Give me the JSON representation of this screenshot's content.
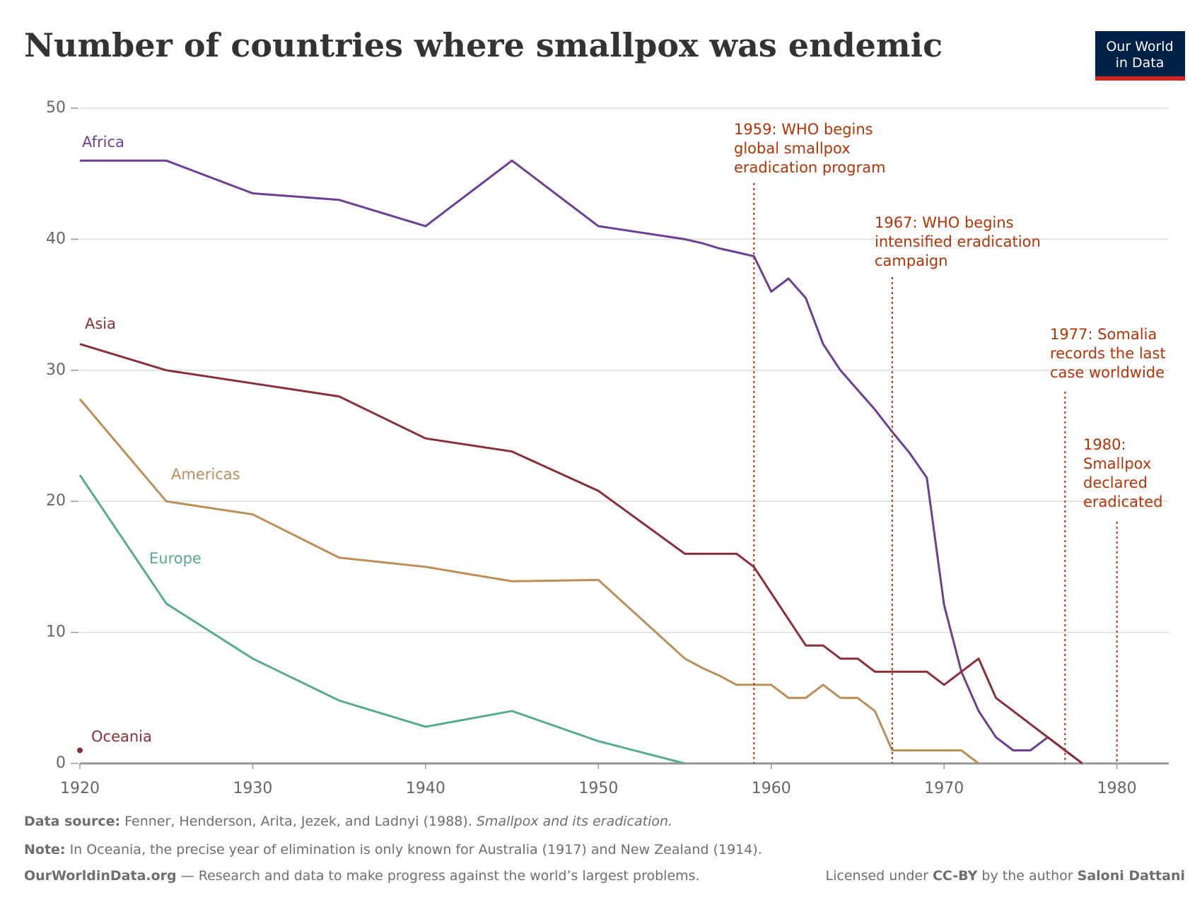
{
  "chart_data": {
    "type": "line",
    "title": "Number of countries where smallpox was endemic",
    "logo": [
      "Our World",
      "in Data"
    ],
    "x": [
      1920,
      1925,
      1930,
      1935,
      1940,
      1945,
      1950,
      1955,
      1956,
      1957,
      1958,
      1959,
      1960,
      1961,
      1962,
      1963,
      1964,
      1965,
      1966,
      1967,
      1968,
      1969,
      1970,
      1971,
      1972,
      1973,
      1974,
      1975,
      1976,
      1977,
      1978,
      1979,
      1980
    ],
    "xlim": [
      1920,
      1983
    ],
    "xticks": [
      1920,
      1930,
      1940,
      1950,
      1960,
      1970,
      1980
    ],
    "ylim": [
      0,
      50
    ],
    "yticks": [
      0,
      10,
      20,
      30,
      40,
      50
    ],
    "grid": true,
    "series": [
      {
        "name": "Africa",
        "color": "#6d3e91",
        "values": [
          46,
          46,
          43.5,
          43,
          41,
          46,
          41,
          40,
          39.7,
          39.3,
          39,
          38.7,
          36,
          37,
          35.5,
          32,
          30,
          28.5,
          27,
          25.3,
          23.7,
          21.8,
          12.1,
          7,
          4,
          2,
          1,
          1,
          2,
          1,
          0,
          null,
          null
        ]
      },
      {
        "name": "Asia",
        "color": "#883039",
        "values": [
          32,
          30,
          29,
          28,
          24.8,
          23.8,
          20.8,
          16,
          16,
          16,
          16,
          15,
          13,
          11,
          9,
          9,
          8,
          8,
          7,
          7,
          7,
          7,
          6,
          7,
          8,
          5,
          4,
          3,
          2,
          1,
          0,
          null,
          null
        ]
      },
      {
        "name": "Americas",
        "color": "#bc8e5a",
        "values": [
          27.8,
          20,
          19,
          15.7,
          15,
          13.9,
          14,
          8,
          7.3,
          6.7,
          6,
          6,
          6,
          5,
          5,
          6,
          5,
          5,
          4,
          1,
          1,
          1,
          1,
          1,
          0,
          null,
          null,
          null,
          null,
          null,
          null,
          null,
          null
        ]
      },
      {
        "name": "Europe",
        "color": "#58ac8c",
        "values": [
          22,
          12.2,
          8,
          4.8,
          2.8,
          4,
          1.7,
          0,
          null,
          null,
          null,
          null,
          null,
          null,
          null,
          null,
          null,
          null,
          null,
          null,
          null,
          null,
          null,
          null,
          null,
          null,
          null,
          null,
          null,
          null,
          null,
          null,
          null
        ]
      },
      {
        "name": "Oceania",
        "color": "#883039",
        "values": [
          1,
          null,
          null,
          null,
          null,
          null,
          null,
          null,
          null,
          null,
          null,
          null,
          null,
          null,
          null,
          null,
          null,
          null,
          null,
          null,
          null,
          null,
          null,
          null,
          null,
          null,
          null,
          null,
          null,
          null,
          null,
          null,
          null
        ]
      }
    ],
    "annotations": [
      {
        "x": 1959,
        "lines": [
          "1959: WHO begins",
          "global smallpox",
          "eradication program"
        ]
      },
      {
        "x": 1967,
        "lines": [
          "1967: WHO begins",
          "intensified eradication",
          "campaign"
        ]
      },
      {
        "x": 1977,
        "lines": [
          "1977: Somalia",
          "records the last",
          "case worldwide"
        ]
      },
      {
        "x": 1980,
        "lines": [
          "1980:",
          "Smallpox",
          "declared",
          "eradicated"
        ]
      }
    ],
    "source": {
      "label": "Data source:",
      "text": " Fenner, Henderson, Arita, Jezek, and Ladnyi (1988). ",
      "title": "Smallpox and its eradication."
    },
    "note": {
      "label": "Note:",
      "text": " In Oceania, the precise year of elimination is only known for Australia (1917) and New Zealand (1914)."
    },
    "footer_left": {
      "site": "OurWorldinData.org",
      "text": " — Research and data to make progress against the world’s largest problems."
    },
    "footer_right": {
      "pre": "Licensed under ",
      "license": "CC-BY",
      "mid": " by the author ",
      "author": "Saloni Dattani"
    }
  }
}
